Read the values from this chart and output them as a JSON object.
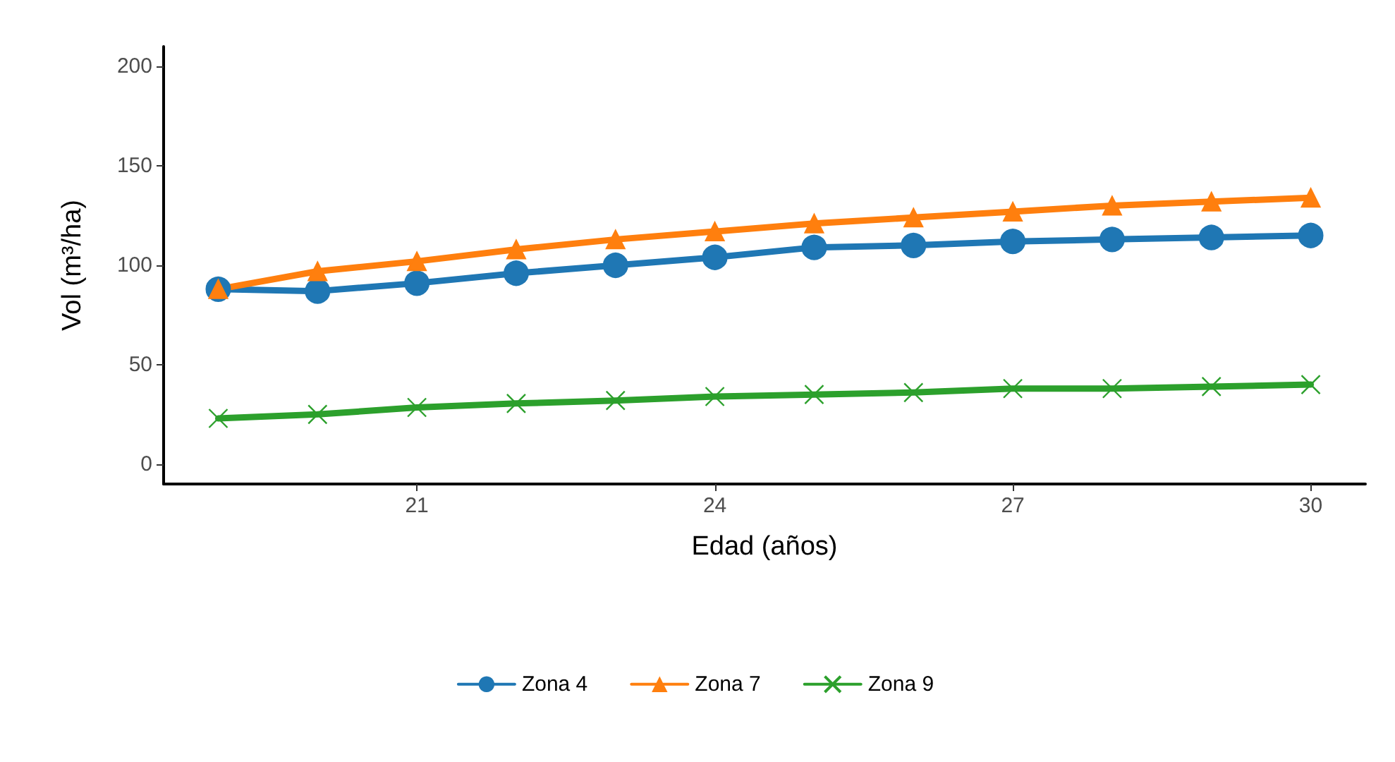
{
  "chart_data": {
    "type": "line",
    "xlabel": "Edad (años)",
    "ylabel": "Vol (m³/ha)",
    "x": [
      19,
      20,
      21,
      22,
      23,
      24,
      25,
      26,
      27,
      28,
      29,
      30
    ],
    "xlim": [
      18.45,
      30.55
    ],
    "xticks": [
      21,
      24,
      27,
      30
    ],
    "ylim": [
      -10,
      210
    ],
    "yticks": [
      0,
      50,
      100,
      150,
      200
    ],
    "grid": false,
    "legend": "bottom",
    "series": [
      {
        "name": "Zona 4",
        "color": "#1f77b4",
        "marker": "circle",
        "values": [
          88,
          87,
          91,
          96,
          100,
          104,
          109,
          110,
          112,
          113,
          114,
          115
        ]
      },
      {
        "name": "Zona 7",
        "color": "#ff7f0e",
        "marker": "triangle",
        "values": [
          88,
          97,
          102,
          108,
          113,
          117,
          121,
          124,
          127,
          130,
          132,
          134
        ]
      },
      {
        "name": "Zona 9",
        "color": "#2ca02c",
        "marker": "cross",
        "values": [
          23,
          25,
          28.5,
          30.5,
          32,
          34,
          35,
          36,
          38,
          38,
          39,
          40
        ]
      }
    ]
  }
}
